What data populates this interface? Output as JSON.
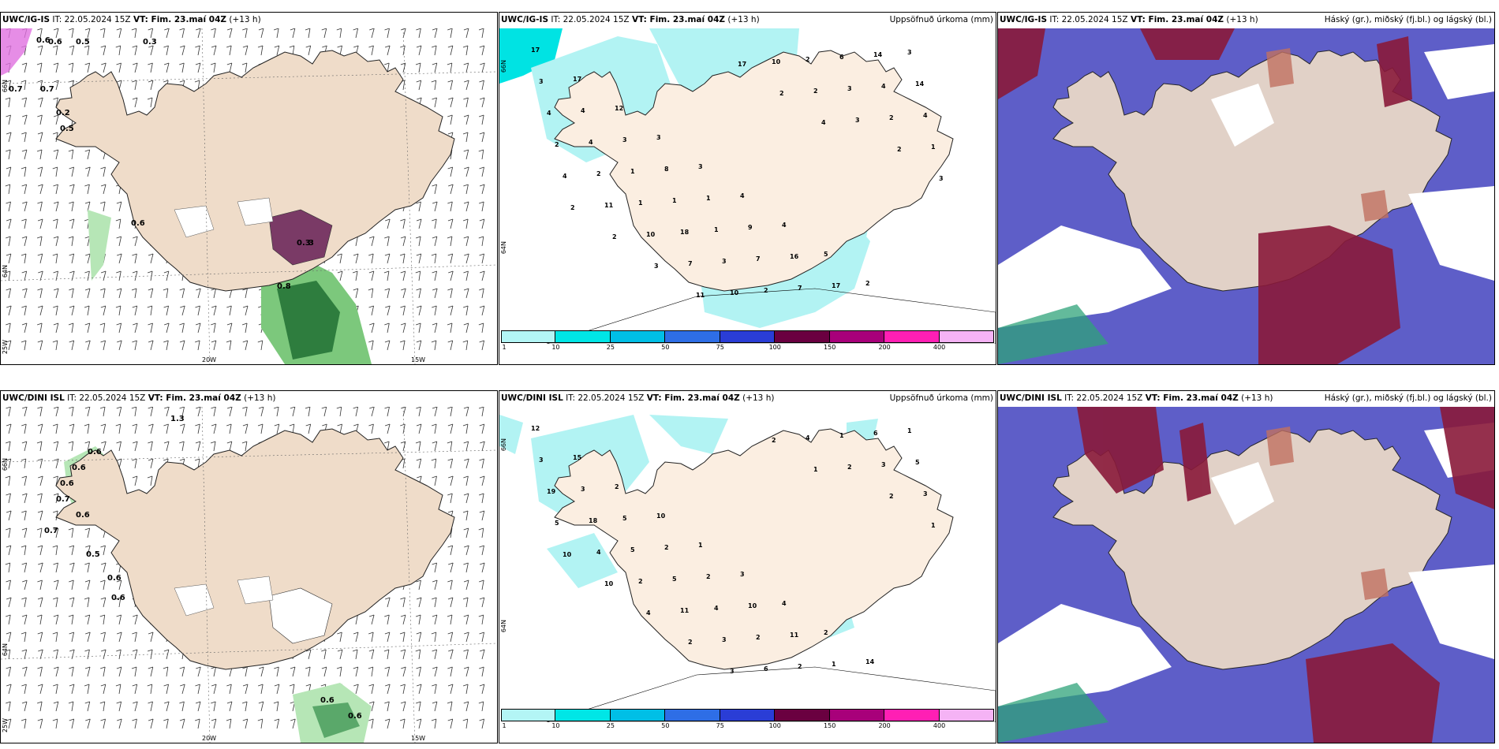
{
  "panels": [
    {
      "model": "UWC/IG-IS",
      "run_text": "IT: 22.05.2024 15Z",
      "valid_prefix": "VT: Fim. 23.maí 04Z",
      "lead": "(+13 h)",
      "right_title": ""
    },
    {
      "model": "UWC/IG-IS",
      "run_text": "IT: 22.05.2024 15Z",
      "valid_prefix": "VT: Fim. 23.maí 04Z",
      "lead": "(+13 h)",
      "right_title": "Uppsöfnuð úrkoma (mm)"
    },
    {
      "model": "UWC/IG-IS",
      "run_text": "IT: 22.05.2024 15Z",
      "valid_prefix": "VT: Fim. 23.maí 04Z",
      "lead": "(+13 h)",
      "right_title": "Háský (gr.), miðský (fj.bl.) og lágský (bl.)"
    },
    {
      "model": "UWC/DINI ISL",
      "run_text": "IT: 22.05.2024 15Z",
      "valid_prefix": "VT: Fim. 23.maí 04Z",
      "lead": "(+13 h)",
      "right_title": ""
    },
    {
      "model": "UWC/DINI ISL",
      "run_text": "IT: 22.05.2024 15Z",
      "valid_prefix": "VT: Fim. 23.maí 04Z",
      "lead": "(+13 h)",
      "right_title": "Uppsöfnuð úrkoma (mm)"
    },
    {
      "model": "UWC/DINI ISL",
      "run_text": "IT: 22.05.2024 15Z",
      "valid_prefix": "VT: Fim. 23.maí 04Z",
      "lead": "(+13 h)",
      "right_title": "Háský (gr.), miðský (fj.bl.) og lágský (bl.)"
    }
  ],
  "axis_labels": {
    "lon": [
      "20W",
      "15W"
    ],
    "lat": [
      "66N",
      "64N",
      "25W"
    ]
  },
  "colorbar": {
    "ticks": [
      "1",
      "10",
      "25",
      "50",
      "75",
      "100",
      "150",
      "200",
      "400"
    ],
    "colors": [
      "#b3f5f5",
      "#00e6e6",
      "#00bfe6",
      "#2e6ee6",
      "#2a3dd6",
      "#6a0040",
      "#a8007a",
      "#ff1fb4",
      "#f5b3f5"
    ]
  },
  "colors": {
    "land": "#efdcc9",
    "coast": "#222222",
    "precip_light": "#b2f3f3",
    "precip_mid": "#00e3e3",
    "low_cloud": "#5e5ec8",
    "high_cloud": "#8a1a3a",
    "mid_cloud": "#c07060"
  },
  "precip_labels_top": [
    "17",
    "17",
    "12",
    "3",
    "3",
    "4",
    "4",
    "5",
    "2",
    "3",
    "3",
    "4",
    "3",
    "8",
    "1",
    "9",
    "16",
    "17",
    "14",
    "14",
    "4",
    "4",
    "1",
    "1",
    "1",
    "7",
    "7",
    "6",
    "4",
    "4",
    "2",
    "2",
    "1",
    "18",
    "3",
    "2",
    "2",
    "3",
    "2",
    "1",
    "4",
    "11",
    "10",
    "7",
    "10",
    "10",
    "2",
    "3",
    "2",
    "3",
    "2",
    "2",
    "3",
    "11",
    "17",
    "2",
    "4"
  ],
  "precip_labels_bottom": [
    "12",
    "15",
    "2",
    "10",
    "1",
    "3",
    "4",
    "2",
    "14",
    "1",
    "3",
    "3",
    "5",
    "2",
    "2",
    "10",
    "11",
    "1",
    "6",
    "5",
    "19",
    "18",
    "5",
    "5",
    "4",
    "2",
    "2",
    "1",
    "3",
    "3",
    "5",
    "4",
    "2",
    "11",
    "3",
    "6",
    "4",
    "2",
    "2",
    "1",
    "10",
    "10",
    "4",
    "2",
    "3",
    "2",
    "1"
  ],
  "wind_labels_top": [
    "0.6",
    "0.6",
    "0.5",
    "0.3",
    "0.7",
    "0.7",
    "0.5",
    "0.2",
    "0.6",
    "0.3",
    "3",
    "0.8"
  ],
  "wind_labels_bottom": [
    "1.3",
    "0.6",
    "0.6",
    "0.6",
    "0.7",
    "0.6",
    "0.7",
    "0.5",
    "0.6",
    "0.6",
    "0.6",
    "0.6"
  ]
}
